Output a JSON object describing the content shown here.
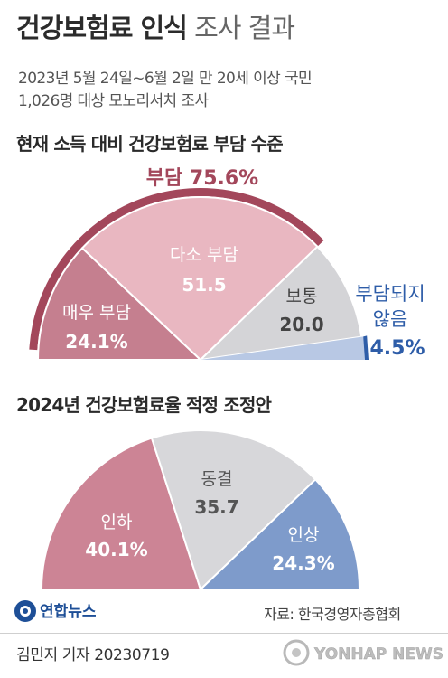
{
  "header": {
    "title_bold": "건강보험료 인식",
    "title_light": "조사 결과",
    "sub1": "2023년 5월 24일~6월 2일 만 20세 이상 국민",
    "sub2": "1,026명 대상 모노리서치 조사"
  },
  "chart_data": [
    {
      "type": "pie",
      "title": "현재 소득 대비 건강보험료 부담 수준",
      "layout": "semicircle",
      "slices": [
        {
          "name": "매우 부담",
          "value": 24.1,
          "display": "24.1%",
          "color": "#c57f8f"
        },
        {
          "name": "다소 부담",
          "value": 51.5,
          "display": "51.5",
          "color": "#e9b7c1"
        },
        {
          "name": "보통",
          "value": 20.0,
          "display": "20.0",
          "color": "#d4d4d7"
        },
        {
          "name": "부담되지 않음",
          "value": 4.5,
          "display": "4.5%",
          "color": "#b8c8e4"
        }
      ],
      "group": {
        "label": "부담 75.6%",
        "value": 75.6,
        "color": "#a3475b"
      },
      "accent_color": "#2e5da8"
    },
    {
      "type": "pie",
      "title": "2024년 건강보험료율 적정 조정안",
      "layout": "semicircle",
      "slices": [
        {
          "name": "인하",
          "value": 40.1,
          "display": "40.1%",
          "color": "#cc8495"
        },
        {
          "name": "동결",
          "value": 35.7,
          "display": "35.7",
          "color": "#d7d7da"
        },
        {
          "name": "인상",
          "value": 24.3,
          "display": "24.3%",
          "color": "#7e9bcb"
        }
      ]
    }
  ],
  "footer": {
    "logo_text": "연합뉴스",
    "source": "자료: 한국경영자총협회",
    "byline": "김민지 기자  20230719",
    "watermark": "YONHAP NEWS"
  }
}
